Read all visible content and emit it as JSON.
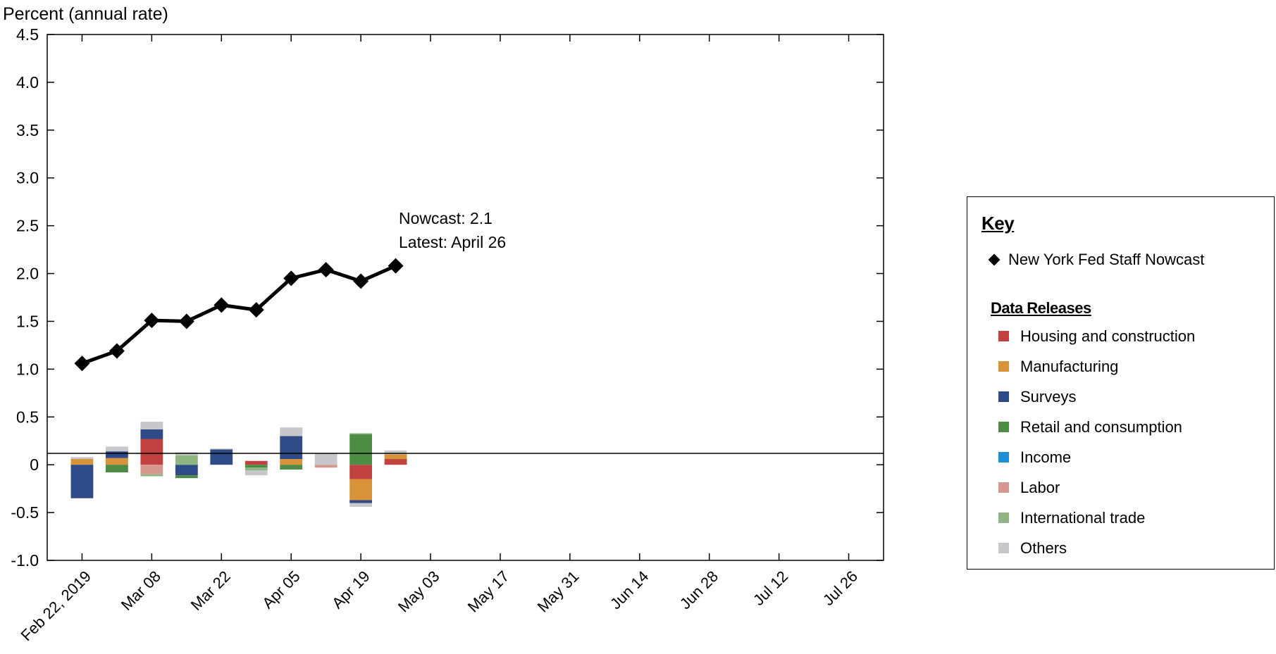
{
  "chart_data": {
    "type": "bar+line",
    "y_axis_title": "Percent (annual rate)",
    "ylim": [
      -1.0,
      4.5
    ],
    "y_ticks": [
      "4.5",
      "4.0",
      "3.5",
      "3.0",
      "2.5",
      "2.0",
      "1.5",
      "1.0",
      "0.5",
      "0",
      "-0.5",
      "-1.0"
    ],
    "y_tick_values": [
      4.5,
      4.0,
      3.5,
      3.0,
      2.5,
      2.0,
      1.5,
      1.0,
      0.5,
      0,
      -0.5,
      -1.0
    ],
    "x_tick_labels": [
      "Feb 22, 2019",
      "Mar 08",
      "Mar 22",
      "Apr 05",
      "Apr 19",
      "May 03",
      "May 17",
      "May 31",
      "Jun 14",
      "Jun 28",
      "Jul 12",
      "Jul 26"
    ],
    "x_tick_dates": [
      "2019-02-22",
      "2019-03-08",
      "2019-03-22",
      "2019-04-05",
      "2019-04-19",
      "2019-05-03",
      "2019-05-17",
      "2019-05-31",
      "2019-06-14",
      "2019-06-28",
      "2019-07-12",
      "2019-07-26"
    ],
    "x_range": [
      "2019-02-15",
      "2019-08-02"
    ],
    "line": {
      "name": "New York Fed Staff Nowcast",
      "dates": [
        "2019-02-22",
        "2019-03-01",
        "2019-03-08",
        "2019-03-15",
        "2019-03-22",
        "2019-03-29",
        "2019-04-05",
        "2019-04-12",
        "2019-04-19",
        "2019-04-26"
      ],
      "values": [
        1.06,
        1.19,
        1.51,
        1.5,
        1.67,
        1.62,
        1.95,
        2.04,
        1.92,
        2.08
      ]
    },
    "bar_dates": [
      "2019-02-22",
      "2019-03-01",
      "2019-03-08",
      "2019-03-15",
      "2019-03-22",
      "2019-03-29",
      "2019-04-05",
      "2019-04-12",
      "2019-04-19",
      "2019-04-26"
    ],
    "bar_series": [
      {
        "name": "Housing and construction",
        "color": "#c0413f",
        "values": [
          0,
          0,
          0.27,
          0,
          0,
          0.04,
          0,
          0,
          -0.15,
          0.06
        ]
      },
      {
        "name": "Manufacturing",
        "color": "#d9933a",
        "values": [
          0.06,
          0.07,
          0,
          0,
          0,
          0,
          0.06,
          0,
          -0.22,
          0.05
        ]
      },
      {
        "name": "Surveys",
        "color": "#2e4a87",
        "values": [
          -0.35,
          0.07,
          0.1,
          -0.11,
          0.16,
          0,
          0.24,
          0,
          -0.03,
          0
        ]
      },
      {
        "name": "Retail and consumption",
        "color": "#4e8c46",
        "values": [
          0,
          -0.08,
          0,
          -0.03,
          0,
          -0.03,
          -0.05,
          0,
          0.32,
          0
        ]
      },
      {
        "name": "Income",
        "color": "#1e8fd5",
        "values": [
          0,
          0,
          0,
          0,
          0,
          0,
          0,
          0,
          0,
          0
        ]
      },
      {
        "name": "Labor",
        "color": "#d4988c",
        "values": [
          0,
          0,
          -0.1,
          0,
          0,
          0,
          0,
          -0.03,
          0,
          0
        ]
      },
      {
        "name": "International trade",
        "color": "#8db682",
        "values": [
          0,
          0,
          -0.02,
          0.1,
          0,
          -0.03,
          0,
          0,
          0.01,
          0
        ]
      },
      {
        "name": "Others",
        "color": "#c8c8cc",
        "values": [
          0.02,
          0.05,
          0.08,
          0.03,
          0.01,
          -0.05,
          0.09,
          0.12,
          -0.04,
          0.04
        ]
      }
    ],
    "annotation": {
      "line1": "Nowcast:  2.1",
      "line2": "Latest: April 26"
    }
  },
  "key": {
    "title": "Key",
    "nowcast_label": "New York Fed Staff Nowcast",
    "releases_title": "Data Releases",
    "items": [
      {
        "label": "Housing and construction",
        "color": "#c0413f"
      },
      {
        "label": "Manufacturing",
        "color": "#d9933a"
      },
      {
        "label": "Surveys",
        "color": "#2e4a87"
      },
      {
        "label": "Retail and consumption",
        "color": "#4e8c46"
      },
      {
        "label": "Income",
        "color": "#1e8fd5"
      },
      {
        "label": "Labor",
        "color": "#d4988c"
      },
      {
        "label": "International trade",
        "color": "#8db682"
      },
      {
        "label": "Others",
        "color": "#c8c8cc"
      }
    ]
  }
}
